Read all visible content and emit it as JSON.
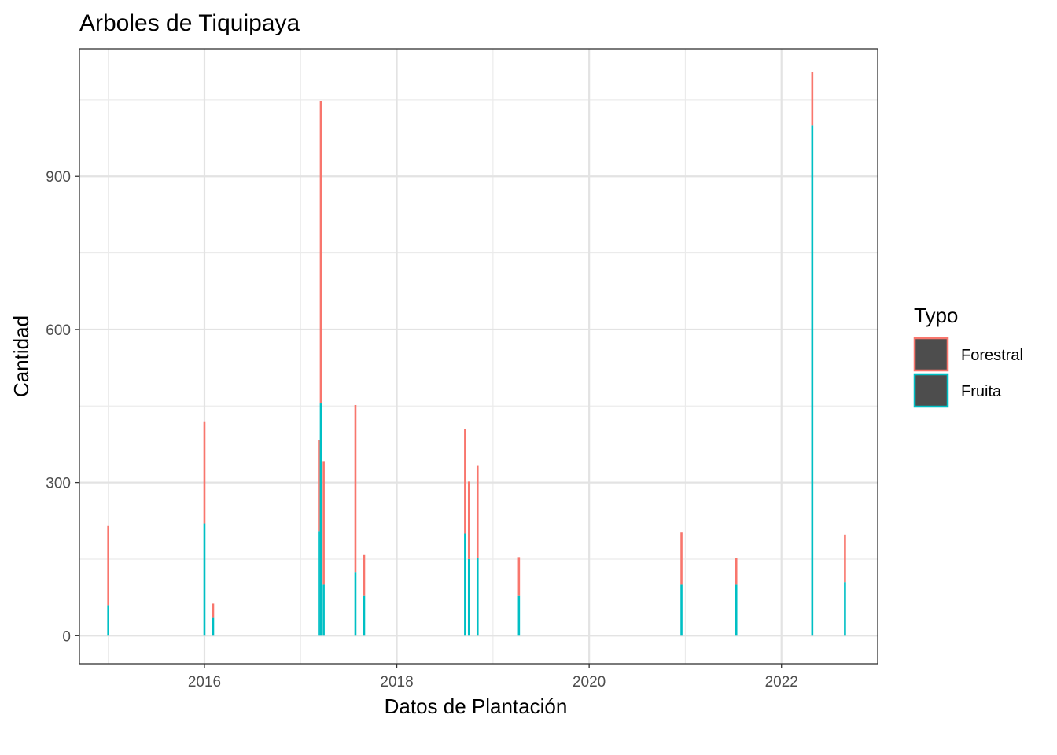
{
  "chart_data": {
    "type": "bar",
    "stacked": true,
    "title": "Arboles de Tiquipaya",
    "xlabel": "Datos de Plantación",
    "ylabel": "Cantidad",
    "x_ticks": [
      "2016",
      "2018",
      "2020",
      "2022"
    ],
    "y_ticks": [
      "0",
      "300",
      "600",
      "900"
    ],
    "xlim": [
      2014.7,
      2023.0
    ],
    "ylim": [
      -55,
      1150
    ],
    "grid": true,
    "legend": {
      "title": "Typo",
      "position": "right",
      "entries": [
        {
          "name": "Forestral",
          "color": "#F8766D"
        },
        {
          "name": "Fruita",
          "color": "#00BFC4"
        }
      ]
    },
    "bars": [
      {
        "x": 2015.0,
        "fruita": 60,
        "forestral": 155
      },
      {
        "x": 2016.0,
        "fruita": 220,
        "forestral": 200
      },
      {
        "x": 2016.09,
        "fruita": 35,
        "forestral": 28
      },
      {
        "x": 2017.19,
        "fruita": 205,
        "forestral": 178
      },
      {
        "x": 2017.21,
        "fruita": 455,
        "forestral": 592
      },
      {
        "x": 2017.24,
        "fruita": 100,
        "forestral": 242
      },
      {
        "x": 2017.57,
        "fruita": 125,
        "forestral": 327
      },
      {
        "x": 2017.66,
        "fruita": 78,
        "forestral": 80
      },
      {
        "x": 2018.71,
        "fruita": 200,
        "forestral": 205
      },
      {
        "x": 2018.75,
        "fruita": 150,
        "forestral": 152
      },
      {
        "x": 2018.84,
        "fruita": 152,
        "forestral": 182
      },
      {
        "x": 2019.27,
        "fruita": 78,
        "forestral": 76
      },
      {
        "x": 2020.96,
        "fruita": 100,
        "forestral": 102
      },
      {
        "x": 2021.53,
        "fruita": 100,
        "forestral": 53
      },
      {
        "x": 2022.32,
        "fruita": 1000,
        "forestral": 105
      },
      {
        "x": 2022.66,
        "fruita": 105,
        "forestral": 93
      }
    ]
  }
}
